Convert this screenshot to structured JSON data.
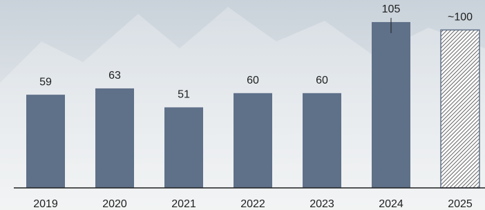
{
  "chart_data": {
    "type": "bar",
    "categories": [
      "2019",
      "2020",
      "2021",
      "2022",
      "2023",
      "2024",
      "2025"
    ],
    "values": [
      59,
      63,
      51,
      60,
      60,
      105,
      100
    ],
    "value_labels": [
      "59",
      "63",
      "51",
      "60",
      "60",
      "105",
      "~100"
    ],
    "hatched": [
      false,
      false,
      false,
      false,
      false,
      false,
      true
    ],
    "color": "#5f7089",
    "ylim": [
      0,
      110
    ]
  }
}
